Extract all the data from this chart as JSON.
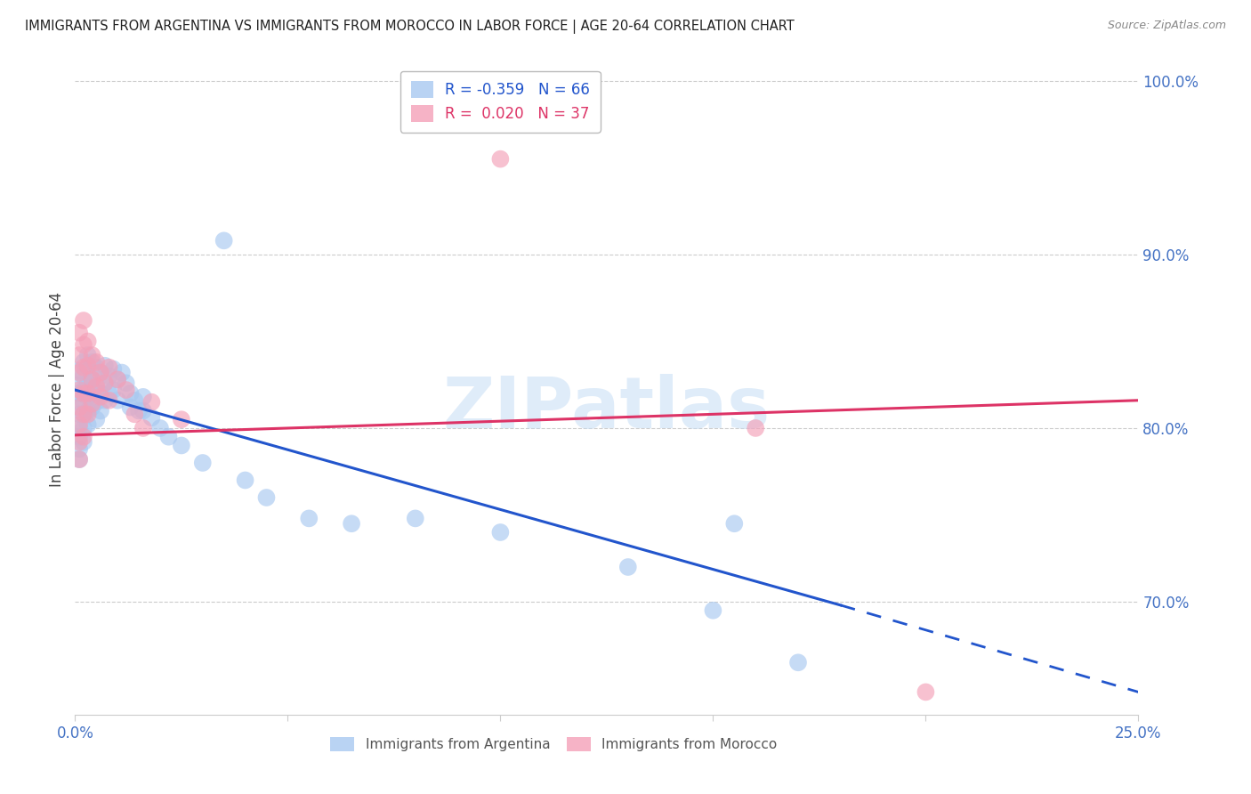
{
  "title": "IMMIGRANTS FROM ARGENTINA VS IMMIGRANTS FROM MOROCCO IN LABOR FORCE | AGE 20-64 CORRELATION CHART",
  "source": "Source: ZipAtlas.com",
  "ylabel": "In Labor Force | Age 20-64",
  "right_yticks": [
    70.0,
    80.0,
    90.0,
    100.0
  ],
  "argentina_R": -0.359,
  "argentina_N": 66,
  "morocco_R": 0.02,
  "morocco_N": 37,
  "argentina_color": "#A8C8F0",
  "morocco_color": "#F4A0B8",
  "argentina_line_color": "#2255CC",
  "morocco_line_color": "#DD3366",
  "watermark": "ZIPatlas",
  "xlim": [
    0.0,
    0.25
  ],
  "ylim": [
    0.635,
    1.01
  ],
  "arg_line_x0": 0.0,
  "arg_line_y0": 0.822,
  "arg_line_x1": 0.18,
  "arg_line_y1": 0.698,
  "arg_line_dash_x1": 0.25,
  "arg_line_dash_y1": 0.648,
  "mor_line_x0": 0.0,
  "mor_line_y0": 0.796,
  "mor_line_x1": 0.25,
  "mor_line_y1": 0.816,
  "argentina_points": [
    [
      0.001,
      0.833
    ],
    [
      0.001,
      0.825
    ],
    [
      0.001,
      0.82
    ],
    [
      0.001,
      0.815
    ],
    [
      0.001,
      0.808
    ],
    [
      0.001,
      0.8
    ],
    [
      0.001,
      0.795
    ],
    [
      0.001,
      0.788
    ],
    [
      0.001,
      0.782
    ],
    [
      0.002,
      0.838
    ],
    [
      0.002,
      0.83
    ],
    [
      0.002,
      0.822
    ],
    [
      0.002,
      0.815
    ],
    [
      0.002,
      0.808
    ],
    [
      0.002,
      0.8
    ],
    [
      0.002,
      0.792
    ],
    [
      0.003,
      0.842
    ],
    [
      0.003,
      0.835
    ],
    [
      0.003,
      0.826
    ],
    [
      0.003,
      0.818
    ],
    [
      0.003,
      0.81
    ],
    [
      0.003,
      0.802
    ],
    [
      0.004,
      0.838
    ],
    [
      0.004,
      0.828
    ],
    [
      0.004,
      0.82
    ],
    [
      0.004,
      0.812
    ],
    [
      0.005,
      0.835
    ],
    [
      0.005,
      0.825
    ],
    [
      0.005,
      0.815
    ],
    [
      0.005,
      0.805
    ],
    [
      0.006,
      0.832
    ],
    [
      0.006,
      0.82
    ],
    [
      0.006,
      0.81
    ],
    [
      0.007,
      0.836
    ],
    [
      0.007,
      0.826
    ],
    [
      0.007,
      0.816
    ],
    [
      0.008,
      0.83
    ],
    [
      0.008,
      0.82
    ],
    [
      0.009,
      0.834
    ],
    [
      0.009,
      0.822
    ],
    [
      0.01,
      0.828
    ],
    [
      0.01,
      0.816
    ],
    [
      0.011,
      0.832
    ],
    [
      0.012,
      0.826
    ],
    [
      0.013,
      0.82
    ],
    [
      0.013,
      0.812
    ],
    [
      0.014,
      0.816
    ],
    [
      0.015,
      0.81
    ],
    [
      0.016,
      0.818
    ],
    [
      0.016,
      0.81
    ],
    [
      0.018,
      0.806
    ],
    [
      0.02,
      0.8
    ],
    [
      0.022,
      0.795
    ],
    [
      0.025,
      0.79
    ],
    [
      0.03,
      0.78
    ],
    [
      0.035,
      0.908
    ],
    [
      0.04,
      0.77
    ],
    [
      0.045,
      0.76
    ],
    [
      0.055,
      0.748
    ],
    [
      0.065,
      0.745
    ],
    [
      0.08,
      0.748
    ],
    [
      0.1,
      0.74
    ],
    [
      0.13,
      0.72
    ],
    [
      0.15,
      0.695
    ],
    [
      0.155,
      0.745
    ],
    [
      0.17,
      0.665
    ]
  ],
  "morocco_points": [
    [
      0.001,
      0.855
    ],
    [
      0.001,
      0.842
    ],
    [
      0.001,
      0.832
    ],
    [
      0.001,
      0.822
    ],
    [
      0.001,
      0.812
    ],
    [
      0.001,
      0.802
    ],
    [
      0.001,
      0.792
    ],
    [
      0.001,
      0.782
    ],
    [
      0.002,
      0.862
    ],
    [
      0.002,
      0.848
    ],
    [
      0.002,
      0.835
    ],
    [
      0.002,
      0.82
    ],
    [
      0.002,
      0.808
    ],
    [
      0.002,
      0.795
    ],
    [
      0.003,
      0.85
    ],
    [
      0.003,
      0.836
    ],
    [
      0.003,
      0.82
    ],
    [
      0.003,
      0.808
    ],
    [
      0.004,
      0.842
    ],
    [
      0.004,
      0.828
    ],
    [
      0.004,
      0.814
    ],
    [
      0.005,
      0.838
    ],
    [
      0.005,
      0.824
    ],
    [
      0.006,
      0.832
    ],
    [
      0.006,
      0.818
    ],
    [
      0.007,
      0.826
    ],
    [
      0.008,
      0.835
    ],
    [
      0.008,
      0.816
    ],
    [
      0.01,
      0.828
    ],
    [
      0.012,
      0.822
    ],
    [
      0.014,
      0.808
    ],
    [
      0.016,
      0.8
    ],
    [
      0.018,
      0.815
    ],
    [
      0.025,
      0.805
    ],
    [
      0.1,
      0.955
    ],
    [
      0.16,
      0.8
    ],
    [
      0.2,
      0.648
    ]
  ]
}
